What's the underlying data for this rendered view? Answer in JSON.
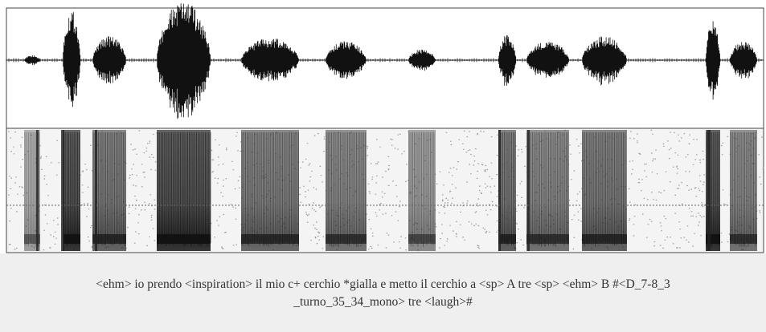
{
  "transcript": {
    "lines": [
      "<ehm> io prendo <inspiration> il mio c+ cerchio *gialla e metto il cerchio a <sp> A tre <sp> <ehm> B #<D_7-8_3",
      "_turno_35_34_mono> tre <laugh>#"
    ]
  }
}
